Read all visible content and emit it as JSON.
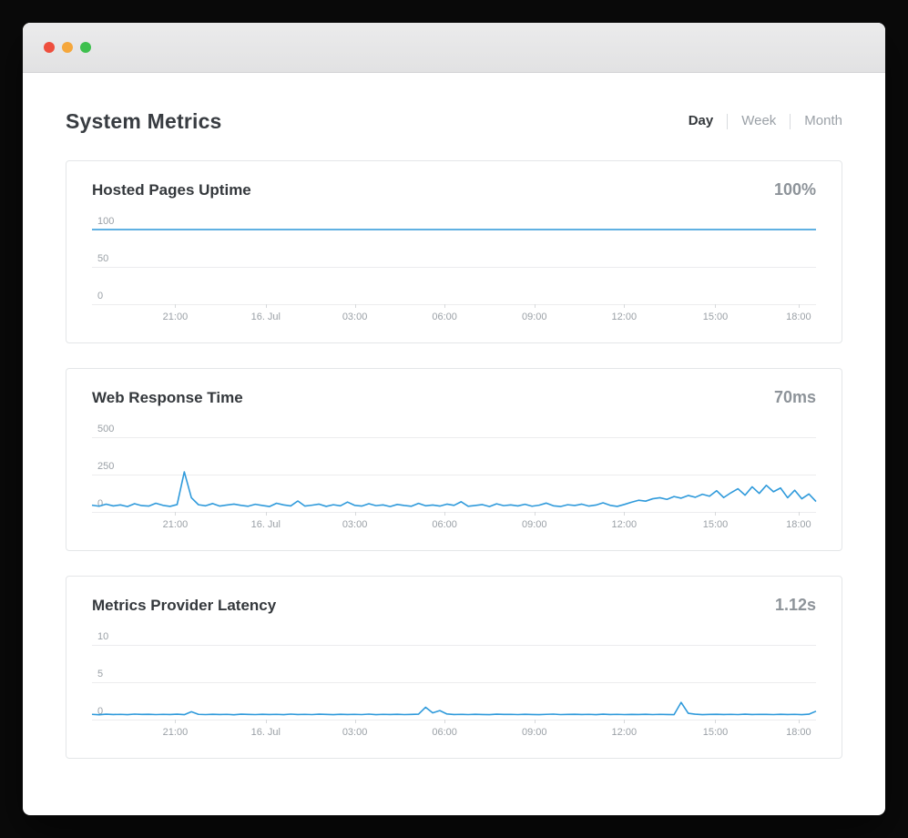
{
  "window": {
    "traffic_lights": [
      "close",
      "minimize",
      "zoom"
    ],
    "traffic_light_colors": [
      "#ee4f3e",
      "#f5a73b",
      "#3ec04e"
    ]
  },
  "colors": {
    "accent_line": "#2f9adb",
    "gridline": "#ececee",
    "axis_label": "#9aa0a6",
    "active_tab_text": "#34383c",
    "inactive_tab_text": "#9ba1a7",
    "card_border": "#e4e6e8",
    "metric_value_text": "#8d9399"
  },
  "header": {
    "title": "System Metrics",
    "range_tabs": [
      {
        "label": "Day",
        "active": true
      },
      {
        "label": "Week",
        "active": false
      },
      {
        "label": "Month",
        "active": false
      }
    ]
  },
  "cards": [
    {
      "title": "Hosted Pages Uptime",
      "value": "100%"
    },
    {
      "title": "Web Response Time",
      "value": "70ms"
    },
    {
      "title": "Metrics Provider Latency",
      "value": "1.12s"
    }
  ],
  "chart_data": [
    {
      "type": "line",
      "title": "Hosted Pages Uptime",
      "unit": "%",
      "current_value": "100%",
      "xlabel": "",
      "ylabel": "",
      "ylim": [
        0,
        100
      ],
      "y_ticks": [
        0,
        50,
        100
      ],
      "x_ticks": [
        "21:00",
        "16. Jul",
        "03:00",
        "06:00",
        "09:00",
        "12:00",
        "15:00",
        "18:00"
      ],
      "x_tick_positions": [
        0.115,
        0.24,
        0.363,
        0.487,
        0.611,
        0.735,
        0.861,
        0.976
      ],
      "grid": "horizontal",
      "legend": "none",
      "values": [
        100,
        100,
        100,
        100,
        100,
        100,
        100,
        100,
        100,
        100,
        100,
        100,
        100,
        100,
        100,
        100,
        100,
        100,
        100,
        100,
        100,
        100,
        100,
        100,
        100
      ]
    },
    {
      "type": "line",
      "title": "Web Response Time",
      "unit": "ms",
      "current_value": "70ms",
      "xlabel": "",
      "ylabel": "",
      "ylim": [
        0,
        500
      ],
      "y_ticks": [
        0,
        250,
        500
      ],
      "x_ticks": [
        "21:00",
        "16. Jul",
        "03:00",
        "06:00",
        "09:00",
        "12:00",
        "15:00",
        "18:00"
      ],
      "x_tick_positions": [
        0.115,
        0.24,
        0.363,
        0.487,
        0.611,
        0.735,
        0.861,
        0.976
      ],
      "grid": "horizontal",
      "legend": "none",
      "values": [
        45,
        38,
        52,
        40,
        47,
        36,
        55,
        42,
        39,
        58,
        44,
        37,
        49,
        268,
        95,
        48,
        41,
        56,
        39,
        46,
        52,
        44,
        38,
        51,
        43,
        36,
        58,
        47,
        40,
        73,
        39,
        45,
        52,
        37,
        48,
        41,
        66,
        44,
        39,
        55,
        42,
        47,
        36,
        50,
        43,
        38,
        57,
        41,
        46,
        39,
        52,
        44,
        68,
        38,
        43,
        49,
        36,
        54,
        42,
        47,
        40,
        51,
        38,
        45,
        59,
        41,
        36,
        48,
        43,
        52,
        39,
        46,
        61,
        44,
        37,
        50,
        65,
        78,
        72,
        88,
        95,
        84,
        103,
        92,
        110,
        98,
        118,
        105,
        142,
        96,
        128,
        155,
        112,
        168,
        124,
        178,
        135,
        160,
        95,
        145,
        88,
        120,
        70
      ]
    },
    {
      "type": "line",
      "title": "Metrics Provider Latency",
      "unit": "s",
      "current_value": "1.12s",
      "xlabel": "",
      "ylabel": "",
      "ylim": [
        0,
        10
      ],
      "y_ticks": [
        0,
        5,
        10
      ],
      "x_ticks": [
        "21:00",
        "16. Jul",
        "03:00",
        "06:00",
        "09:00",
        "12:00",
        "15:00",
        "18:00"
      ],
      "x_tick_positions": [
        0.115,
        0.24,
        0.363,
        0.487,
        0.611,
        0.735,
        0.861,
        0.976
      ],
      "grid": "horizontal",
      "legend": "none",
      "values": [
        0.7,
        0.65,
        0.72,
        0.68,
        0.7,
        0.66,
        0.73,
        0.69,
        0.71,
        0.67,
        0.7,
        0.68,
        0.72,
        0.66,
        1.05,
        0.7,
        0.67,
        0.71,
        0.68,
        0.7,
        0.65,
        0.72,
        0.69,
        0.67,
        0.71,
        0.68,
        0.7,
        0.66,
        0.73,
        0.68,
        0.7,
        0.67,
        0.72,
        0.69,
        0.66,
        0.71,
        0.68,
        0.7,
        0.67,
        0.73,
        0.66,
        0.7,
        0.68,
        0.71,
        0.67,
        0.69,
        0.72,
        1.65,
        0.9,
        1.2,
        0.75,
        0.68,
        0.7,
        0.67,
        0.71,
        0.68,
        0.66,
        0.72,
        0.69,
        0.7,
        0.67,
        0.71,
        0.68,
        0.66,
        0.7,
        0.73,
        0.67,
        0.69,
        0.71,
        0.68,
        0.7,
        0.66,
        0.72,
        0.68,
        0.7,
        0.67,
        0.69,
        0.68,
        0.71,
        0.67,
        0.7,
        0.68,
        0.66,
        2.3,
        0.85,
        0.72,
        0.66,
        0.69,
        0.71,
        0.68,
        0.7,
        0.67,
        0.72,
        0.68,
        0.7,
        0.69,
        0.67,
        0.71,
        0.68,
        0.7,
        0.66,
        0.72,
        1.12
      ]
    }
  ]
}
